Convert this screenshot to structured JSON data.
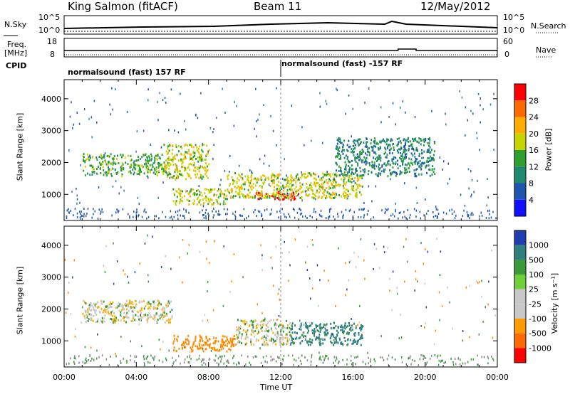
{
  "header": {
    "station": "King Salmon (fitACF)",
    "beam": "Beam 11",
    "date": "12/May/2012"
  },
  "summary": {
    "left_labels": {
      "nsky": "N.Sky",
      "freq_top": "Freq.",
      "freq_unit": "[MHz]",
      "cpid": "CPID"
    },
    "right_labels": {
      "nsearch": "N.Search",
      "nave": "Nave"
    },
    "noise_ticks_left": [
      "10^5",
      "10^0"
    ],
    "noise_ticks_right": [
      "10^5",
      "10^0"
    ],
    "freq_ticks": [
      "18",
      "8"
    ],
    "nave_ticks": [
      "60",
      "0"
    ],
    "cpid_segments": [
      {
        "label": "normalsound (fast) 157 RF",
        "start_hour": 0,
        "end_hour": 12
      },
      {
        "label": "normalsound (fast) -157 RF",
        "start_hour": 12,
        "end_hour": 24
      }
    ]
  },
  "chart_data": [
    {
      "type": "heatmap",
      "name": "power",
      "ylabel": "Slant Range [km]",
      "xlim": [
        0,
        24
      ],
      "ylim": [
        180,
        4600
      ],
      "yticks": [
        1000,
        2000,
        3000,
        4000
      ],
      "colorbar_label": "Power [dB]",
      "colorbar_ticks": [
        "28",
        "24",
        "20",
        "16",
        "12",
        "8",
        "4"
      ],
      "colorbar_colors": [
        "#ff0000",
        "#ff6a00",
        "#ffae00",
        "#c8d400",
        "#2fa02f",
        "#1f8a70",
        "#1f55b0",
        "#1010ff"
      ],
      "features": [
        {
          "hours": [
            1.0,
            5.5
          ],
          "range_km": [
            1600,
            2300
          ],
          "level_db": 12
        },
        {
          "hours": [
            5.5,
            8.0
          ],
          "range_km": [
            1500,
            2600
          ],
          "level_db": 16
        },
        {
          "hours": [
            6.0,
            9.0
          ],
          "range_km": [
            700,
            1200
          ],
          "level_db": 16
        },
        {
          "hours": [
            10.5,
            13.0
          ],
          "range_km": [
            850,
            1100
          ],
          "level_db": 28
        },
        {
          "hours": [
            9.0,
            16.5
          ],
          "range_km": [
            900,
            1700
          ],
          "level_db": 16
        },
        {
          "hours": [
            15.0,
            20.5
          ],
          "range_km": [
            1600,
            2800
          ],
          "level_db": 8
        }
      ]
    },
    {
      "type": "heatmap",
      "name": "velocity",
      "ylabel": "Slant Range [km]",
      "xlabel": "Time UT",
      "xlim": [
        0,
        24
      ],
      "ylim": [
        180,
        4600
      ],
      "yticks": [
        1000,
        2000,
        3000,
        4000
      ],
      "xticks": [
        "00:00",
        "04:00",
        "08:00",
        "12:00",
        "16:00",
        "20:00",
        "00:00"
      ],
      "colorbar_label": "Velocity [m s⁻¹]",
      "colorbar_ticks": [
        "1000",
        "500",
        "100",
        "25",
        "-25",
        "-100",
        "-500",
        "-1000"
      ],
      "colorbar_colors": [
        "#1f3fb0",
        "#2f7f7f",
        "#3a9a3a",
        "#6fd03a",
        "#c8c8c8",
        "#c8c8c8",
        "#ff9a00",
        "#ff6a00",
        "#ff0000"
      ],
      "features": [
        {
          "hours": [
            1.0,
            6.0
          ],
          "range_km": [
            1600,
            2300
          ],
          "velocity": 0
        },
        {
          "hours": [
            6.0,
            9.5
          ],
          "range_km": [
            700,
            1200
          ],
          "velocity": -300
        },
        {
          "hours": [
            9.5,
            12.5
          ],
          "range_km": [
            900,
            1700
          ],
          "velocity": 0
        },
        {
          "hours": [
            12.5,
            16.5
          ],
          "range_km": [
            900,
            1600
          ],
          "velocity": 150
        }
      ]
    }
  ]
}
